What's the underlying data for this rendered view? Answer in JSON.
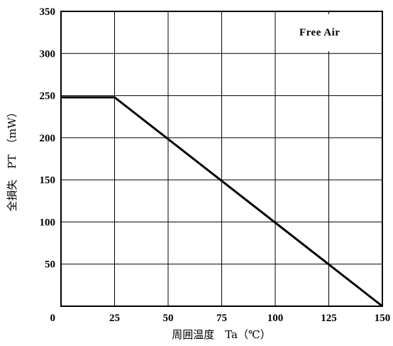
{
  "chart_data": {
    "type": "line",
    "title": "",
    "xlabel": "周囲温度　Ta（℃）",
    "ylabel": "全損失　PT　（mW）",
    "xlim": [
      0,
      150
    ],
    "ylim": [
      0,
      350
    ],
    "x_ticks": [
      "0",
      "25",
      "50",
      "75",
      "100",
      "125",
      "150"
    ],
    "y_ticks": [
      "50",
      "100",
      "150",
      "200",
      "250",
      "300",
      "350"
    ],
    "annotation": "Free Air",
    "grid": true,
    "series": [
      {
        "x": [
          0,
          25,
          150
        ],
        "y": [
          248,
          248,
          0
        ]
      }
    ],
    "line_color": "#000000"
  }
}
